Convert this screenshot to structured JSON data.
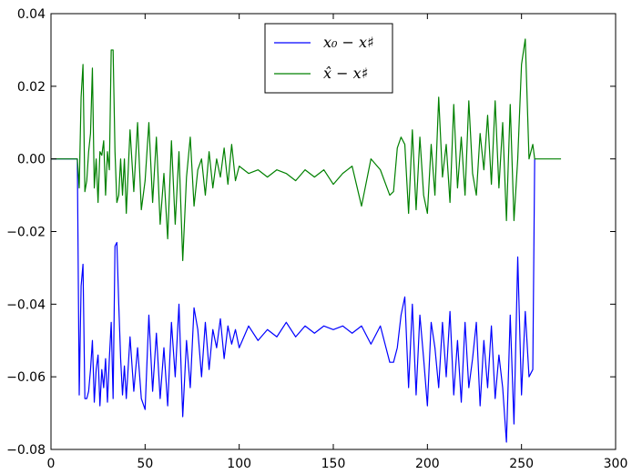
{
  "chart_data": {
    "type": "line",
    "title": "",
    "xlabel": "",
    "ylabel": "",
    "xlim": [
      0,
      300
    ],
    "ylim": [
      -0.08,
      0.04
    ],
    "xticks": [
      0,
      50,
      100,
      150,
      200,
      250,
      300
    ],
    "yticks": [
      -0.08,
      -0.06,
      -0.04,
      -0.02,
      0.0,
      0.02,
      0.04
    ],
    "x_tick_labels": [
      "0",
      "50",
      "100",
      "150",
      "200",
      "250",
      "300"
    ],
    "y_tick_labels": [
      "−0.08",
      "−0.06",
      "−0.04",
      "−0.02",
      "0.00",
      "0.02",
      "0.04"
    ],
    "grid": false,
    "legend_position": "top-center",
    "series": [
      {
        "name": "x₀ − x♯",
        "color": "#0000ff",
        "x": [
          0,
          14,
          15,
          16,
          17,
          18,
          19,
          20,
          21,
          22,
          23,
          24,
          25,
          26,
          27,
          28,
          29,
          30,
          31,
          32,
          33,
          34,
          35,
          36,
          37,
          38,
          39,
          40,
          42,
          44,
          46,
          48,
          50,
          52,
          54,
          56,
          58,
          60,
          62,
          64,
          66,
          68,
          70,
          72,
          74,
          76,
          78,
          80,
          82,
          84,
          86,
          88,
          90,
          92,
          94,
          96,
          98,
          100,
          105,
          110,
          115,
          120,
          125,
          130,
          135,
          140,
          145,
          150,
          155,
          160,
          165,
          170,
          175,
          180,
          182,
          184,
          186,
          188,
          190,
          192,
          194,
          196,
          198,
          200,
          202,
          204,
          206,
          208,
          210,
          212,
          214,
          216,
          218,
          220,
          222,
          224,
          226,
          228,
          230,
          232,
          234,
          236,
          238,
          240,
          242,
          244,
          246,
          248,
          250,
          252,
          254,
          256,
          257
        ],
        "values": [
          0.0,
          0.0,
          -0.065,
          -0.035,
          -0.029,
          -0.066,
          -0.066,
          -0.064,
          -0.058,
          -0.05,
          -0.067,
          -0.058,
          -0.054,
          -0.068,
          -0.058,
          -0.063,
          -0.055,
          -0.067,
          -0.055,
          -0.045,
          -0.066,
          -0.024,
          -0.023,
          -0.04,
          -0.055,
          -0.065,
          -0.057,
          -0.066,
          -0.049,
          -0.064,
          -0.052,
          -0.066,
          -0.069,
          -0.043,
          -0.064,
          -0.048,
          -0.066,
          -0.052,
          -0.068,
          -0.045,
          -0.06,
          -0.04,
          -0.071,
          -0.05,
          -0.063,
          -0.041,
          -0.047,
          -0.06,
          -0.045,
          -0.058,
          -0.047,
          -0.052,
          -0.044,
          -0.055,
          -0.046,
          -0.051,
          -0.047,
          -0.052,
          -0.046,
          -0.05,
          -0.047,
          -0.049,
          -0.045,
          -0.049,
          -0.046,
          -0.048,
          -0.046,
          -0.047,
          -0.046,
          -0.048,
          -0.046,
          -0.051,
          -0.046,
          -0.056,
          -0.056,
          -0.052,
          -0.043,
          -0.038,
          -0.063,
          -0.04,
          -0.065,
          -0.043,
          -0.055,
          -0.068,
          -0.045,
          -0.052,
          -0.063,
          -0.045,
          -0.06,
          -0.042,
          -0.065,
          -0.05,
          -0.067,
          -0.045,
          -0.063,
          -0.055,
          -0.045,
          -0.068,
          -0.05,
          -0.063,
          -0.046,
          -0.066,
          -0.054,
          -0.063,
          -0.078,
          -0.043,
          -0.073,
          -0.027,
          -0.065,
          -0.042,
          -0.06,
          -0.058,
          0.0
        ]
      },
      {
        "name": "x̂ − x♯",
        "color": "#008000",
        "x": [
          0,
          14,
          15,
          16,
          17,
          18,
          19,
          20,
          21,
          22,
          23,
          24,
          25,
          26,
          27,
          28,
          29,
          30,
          31,
          32,
          33,
          34,
          35,
          36,
          37,
          38,
          39,
          40,
          42,
          44,
          46,
          48,
          50,
          52,
          54,
          56,
          58,
          60,
          62,
          64,
          66,
          68,
          70,
          72,
          74,
          76,
          78,
          80,
          82,
          84,
          86,
          88,
          90,
          92,
          94,
          96,
          98,
          100,
          105,
          110,
          115,
          120,
          125,
          130,
          135,
          140,
          145,
          150,
          155,
          160,
          165,
          170,
          175,
          180,
          182,
          184,
          186,
          188,
          190,
          192,
          194,
          196,
          198,
          200,
          202,
          204,
          206,
          208,
          210,
          212,
          214,
          216,
          218,
          220,
          222,
          224,
          226,
          228,
          230,
          232,
          234,
          236,
          238,
          240,
          242,
          244,
          246,
          248,
          250,
          252,
          254,
          256,
          257,
          271
        ],
        "values": [
          0.0,
          0.0,
          -0.008,
          0.017,
          0.026,
          -0.009,
          -0.006,
          0.002,
          0.007,
          0.025,
          -0.008,
          0.0,
          -0.012,
          0.002,
          0.001,
          0.005,
          -0.01,
          0.002,
          -0.003,
          0.03,
          0.03,
          0.002,
          -0.012,
          -0.01,
          0.0,
          -0.01,
          0.0,
          -0.015,
          0.008,
          -0.009,
          0.01,
          -0.014,
          -0.006,
          0.01,
          -0.012,
          0.006,
          -0.018,
          -0.004,
          -0.022,
          0.005,
          -0.018,
          0.002,
          -0.028,
          -0.005,
          0.006,
          -0.013,
          -0.003,
          0.0,
          -0.01,
          0.002,
          -0.008,
          0.0,
          -0.005,
          0.003,
          -0.007,
          0.004,
          -0.006,
          -0.002,
          -0.004,
          -0.003,
          -0.005,
          -0.003,
          -0.004,
          -0.006,
          -0.003,
          -0.005,
          -0.003,
          -0.007,
          -0.004,
          -0.002,
          -0.013,
          0.0,
          -0.003,
          -0.01,
          -0.009,
          0.003,
          0.006,
          0.004,
          -0.015,
          0.008,
          -0.014,
          0.006,
          -0.01,
          -0.015,
          0.004,
          -0.01,
          0.017,
          -0.005,
          0.004,
          -0.012,
          0.015,
          -0.008,
          0.006,
          -0.01,
          0.016,
          -0.004,
          -0.01,
          0.007,
          -0.003,
          0.012,
          -0.007,
          0.016,
          -0.008,
          0.01,
          -0.017,
          0.015,
          -0.017,
          0.0,
          0.026,
          0.033,
          0.0,
          0.004,
          0.0,
          0.0
        ]
      }
    ]
  }
}
